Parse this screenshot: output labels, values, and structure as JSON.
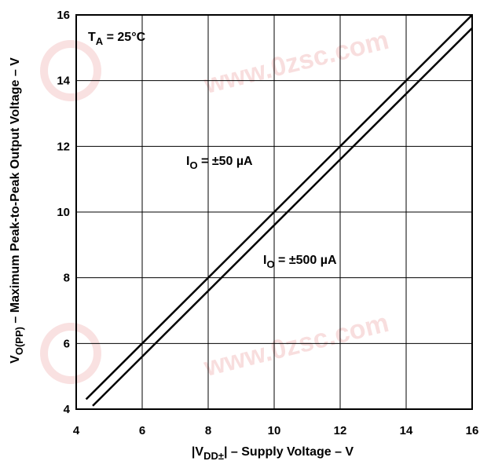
{
  "chart_data": {
    "type": "line",
    "xlabel": {
      "main": "|V",
      "sub": "DD±",
      "rest": "| – Supply Voltage  – V"
    },
    "ylabel": {
      "main": "V",
      "sub": "O(PP)",
      "rest": " – Maximum Peak-to-Peak Output Voltage – V"
    },
    "xlim": [
      4,
      16
    ],
    "ylim": [
      4,
      16
    ],
    "xticks": [
      "4",
      "6",
      "8",
      "10",
      "12",
      "14",
      "16"
    ],
    "yticks": [
      "4",
      "6",
      "8",
      "10",
      "12",
      "14",
      "16"
    ],
    "grid": true,
    "condition": {
      "main": "T",
      "sub": "A",
      "rest": " = 25°C"
    },
    "series": [
      {
        "name": {
          "main": "I",
          "sub": "O",
          "rest": " = ±50 µA"
        },
        "x": [
          4.3,
          16.0
        ],
        "y": [
          4.3,
          16.0
        ]
      },
      {
        "name": {
          "main": "I",
          "sub": "O",
          "rest": " = ±500 µA"
        },
        "x": [
          4.5,
          16.0
        ],
        "y": [
          4.1,
          15.6
        ]
      }
    ]
  },
  "watermark": {
    "text": "www.0zsc.com",
    "color": "#f4c4c4"
  }
}
